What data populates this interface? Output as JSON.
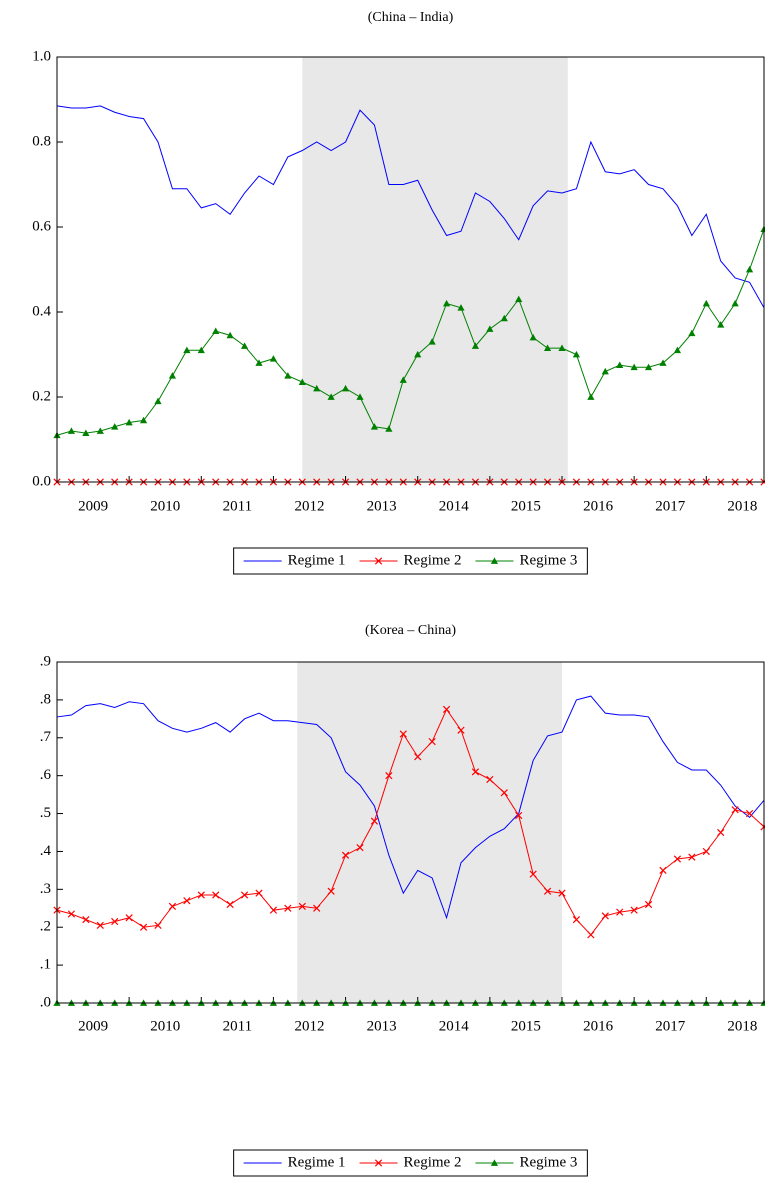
{
  "chart_data": [
    {
      "type": "line",
      "title": "(China – India)",
      "x": [
        2009,
        2009.2,
        2009.4,
        2009.6,
        2009.8,
        2010,
        2010.2,
        2010.4,
        2010.6,
        2010.8,
        2011,
        2011.2,
        2011.4,
        2011.6,
        2011.8,
        2012,
        2012.2,
        2012.4,
        2012.6,
        2012.8,
        2013,
        2013.2,
        2013.4,
        2013.6,
        2013.8,
        2014,
        2014.2,
        2014.4,
        2014.6,
        2014.8,
        2015,
        2015.2,
        2015.4,
        2015.6,
        2015.8,
        2016,
        2016.2,
        2016.4,
        2016.6,
        2016.8,
        2017,
        2017.2,
        2017.4,
        2017.6,
        2017.8,
        2018,
        2018.2,
        2018.4,
        2018.6,
        2018.8
      ],
      "xlim": [
        2009,
        2018.8
      ],
      "xticks": [
        2009,
        2010,
        2011,
        2012,
        2013,
        2014,
        2015,
        2016,
        2017,
        2018
      ],
      "ylim": [
        0,
        1
      ],
      "yticks": [
        {
          "value": 0,
          "label": "0.0"
        },
        0.2,
        0.4,
        0.6,
        0.8,
        {
          "value": 1,
          "label": "1.0"
        }
      ],
      "shade": [
        2012.4,
        2016.08
      ],
      "series": [
        {
          "name": "Regime 1",
          "color": "#0000ff",
          "marker": "none",
          "values": [
            0.885,
            0.88,
            0.88,
            0.885,
            0.87,
            0.86,
            0.855,
            0.8,
            0.69,
            0.69,
            0.645,
            0.655,
            0.63,
            0.68,
            0.72,
            0.7,
            0.765,
            0.78,
            0.8,
            0.78,
            0.8,
            0.875,
            0.84,
            0.7,
            0.7,
            0.71,
            0.64,
            0.58,
            0.59,
            0.68,
            0.66,
            0.62,
            0.57,
            0.65,
            0.685,
            0.68,
            0.69,
            0.8,
            0.73,
            0.725,
            0.735,
            0.7,
            0.69,
            0.65,
            0.58,
            0.63,
            0.52,
            0.48,
            0.47,
            0.41
          ]
        },
        {
          "name": "Regime 2",
          "color": "#ff0000",
          "marker": "x",
          "values": [
            0,
            0,
            0,
            0,
            0,
            0,
            0,
            0,
            0,
            0,
            0,
            0,
            0,
            0,
            0,
            0,
            0,
            0,
            0,
            0,
            0,
            0,
            0,
            0,
            0,
            0,
            0,
            0,
            0,
            0,
            0,
            0,
            0,
            0,
            0,
            0,
            0,
            0,
            0,
            0,
            0,
            0,
            0,
            0,
            0,
            0,
            0,
            0,
            0,
            0
          ]
        },
        {
          "name": "Regime 3",
          "color": "#008000",
          "marker": "triangle",
          "values": [
            0.11,
            0.12,
            0.115,
            0.12,
            0.13,
            0.14,
            0.145,
            0.19,
            0.25,
            0.31,
            0.31,
            0.355,
            0.345,
            0.32,
            0.28,
            0.29,
            0.25,
            0.235,
            0.22,
            0.2,
            0.22,
            0.2,
            0.13,
            0.125,
            0.24,
            0.3,
            0.33,
            0.42,
            0.41,
            0.32,
            0.36,
            0.385,
            0.43,
            0.34,
            0.315,
            0.315,
            0.3,
            0.2,
            0.26,
            0.275,
            0.27,
            0.27,
            0.28,
            0.31,
            0.35,
            0.42,
            0.37,
            0.42,
            0.5,
            0.595
          ]
        }
      ]
    },
    {
      "type": "line",
      "title": "(Korea – China)",
      "x": [
        2009,
        2009.2,
        2009.4,
        2009.6,
        2009.8,
        2010,
        2010.2,
        2010.4,
        2010.6,
        2010.8,
        2011,
        2011.2,
        2011.4,
        2011.6,
        2011.8,
        2012,
        2012.2,
        2012.4,
        2012.6,
        2012.8,
        2013,
        2013.2,
        2013.4,
        2013.6,
        2013.8,
        2014,
        2014.2,
        2014.4,
        2014.6,
        2014.8,
        2015,
        2015.2,
        2015.4,
        2015.6,
        2015.8,
        2016,
        2016.2,
        2016.4,
        2016.6,
        2016.8,
        2017,
        2017.2,
        2017.4,
        2017.6,
        2017.8,
        2018,
        2018.2,
        2018.4,
        2018.6,
        2018.8
      ],
      "xlim": [
        2009,
        2018.8
      ],
      "xticks": [
        2009,
        2010,
        2011,
        2012,
        2013,
        2014,
        2015,
        2016,
        2017,
        2018
      ],
      "ylim": [
        0,
        0.9
      ],
      "yticks": [
        {
          "value": 0,
          "label": ".0"
        },
        {
          "value": 0.1,
          "label": ".1"
        },
        {
          "value": 0.2,
          "label": ".2"
        },
        {
          "value": 0.3,
          "label": ".3"
        },
        {
          "value": 0.4,
          "label": ".4"
        },
        {
          "value": 0.5,
          "label": ".5"
        },
        {
          "value": 0.6,
          "label": ".6"
        },
        {
          "value": 0.7,
          "label": ".7"
        },
        {
          "value": 0.8,
          "label": ".8"
        },
        {
          "value": 0.9,
          "label": ".9"
        }
      ],
      "shade": [
        2012.33,
        2016.0
      ],
      "series": [
        {
          "name": "Regime 1",
          "color": "#0000ff",
          "marker": "none",
          "values": [
            0.755,
            0.76,
            0.785,
            0.79,
            0.78,
            0.795,
            0.79,
            0.745,
            0.725,
            0.715,
            0.725,
            0.74,
            0.715,
            0.75,
            0.765,
            0.745,
            0.745,
            0.74,
            0.735,
            0.7,
            0.61,
            0.575,
            0.52,
            0.39,
            0.29,
            0.35,
            0.33,
            0.225,
            0.37,
            0.41,
            0.44,
            0.46,
            0.5,
            0.64,
            0.705,
            0.715,
            0.8,
            0.81,
            0.765,
            0.76,
            0.76,
            0.755,
            0.69,
            0.635,
            0.615,
            0.615,
            0.575,
            0.52,
            0.49,
            0.535
          ]
        },
        {
          "name": "Regime 2",
          "color": "#ff0000",
          "marker": "x",
          "values": [
            0.245,
            0.235,
            0.22,
            0.205,
            0.215,
            0.225,
            0.2,
            0.205,
            0.255,
            0.27,
            0.285,
            0.285,
            0.26,
            0.285,
            0.29,
            0.245,
            0.25,
            0.255,
            0.25,
            0.295,
            0.39,
            0.41,
            0.48,
            0.6,
            0.71,
            0.65,
            0.69,
            0.775,
            0.72,
            0.61,
            0.59,
            0.555,
            0.495,
            0.34,
            0.295,
            0.29,
            0.22,
            0.18,
            0.23,
            0.24,
            0.245,
            0.26,
            0.35,
            0.38,
            0.385,
            0.4,
            0.45,
            0.51,
            0.5,
            0.465
          ]
        },
        {
          "name": "Regime 3",
          "color": "#008000",
          "marker": "triangle",
          "values": [
            0,
            0,
            0,
            0,
            0,
            0,
            0,
            0,
            0,
            0,
            0,
            0,
            0,
            0,
            0,
            0,
            0,
            0,
            0,
            0,
            0,
            0,
            0,
            0,
            0,
            0,
            0,
            0,
            0,
            0,
            0,
            0,
            0,
            0,
            0,
            0,
            0,
            0,
            0,
            0,
            0,
            0,
            0,
            0,
            0,
            0,
            0,
            0,
            0,
            0
          ]
        }
      ]
    }
  ]
}
